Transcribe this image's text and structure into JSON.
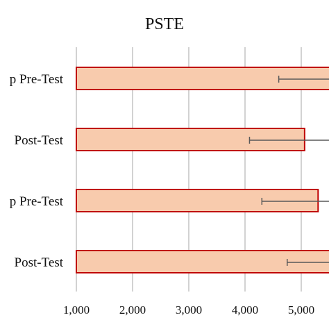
{
  "chart_data": {
    "type": "bar",
    "orientation": "horizontal",
    "title": "PSTE",
    "categories": [
      "p Pre-Test",
      "Post-Test",
      "p Pre-Test",
      "Post-Test"
    ],
    "values": [
      5600,
      5060,
      5300,
      5600
    ],
    "error_low": [
      4600,
      4080,
      4300,
      4750
    ],
    "x_ticks": [
      "1,000",
      "2,000",
      "3,000",
      "4,000",
      "5,000"
    ],
    "xlim": [
      1000,
      5650
    ],
    "grid": "vertical",
    "colors": {
      "bar_fill": "#f8cbad",
      "bar_stroke": "#c00000",
      "error_bar": "#595959",
      "grid": "#a6a6a6"
    }
  }
}
